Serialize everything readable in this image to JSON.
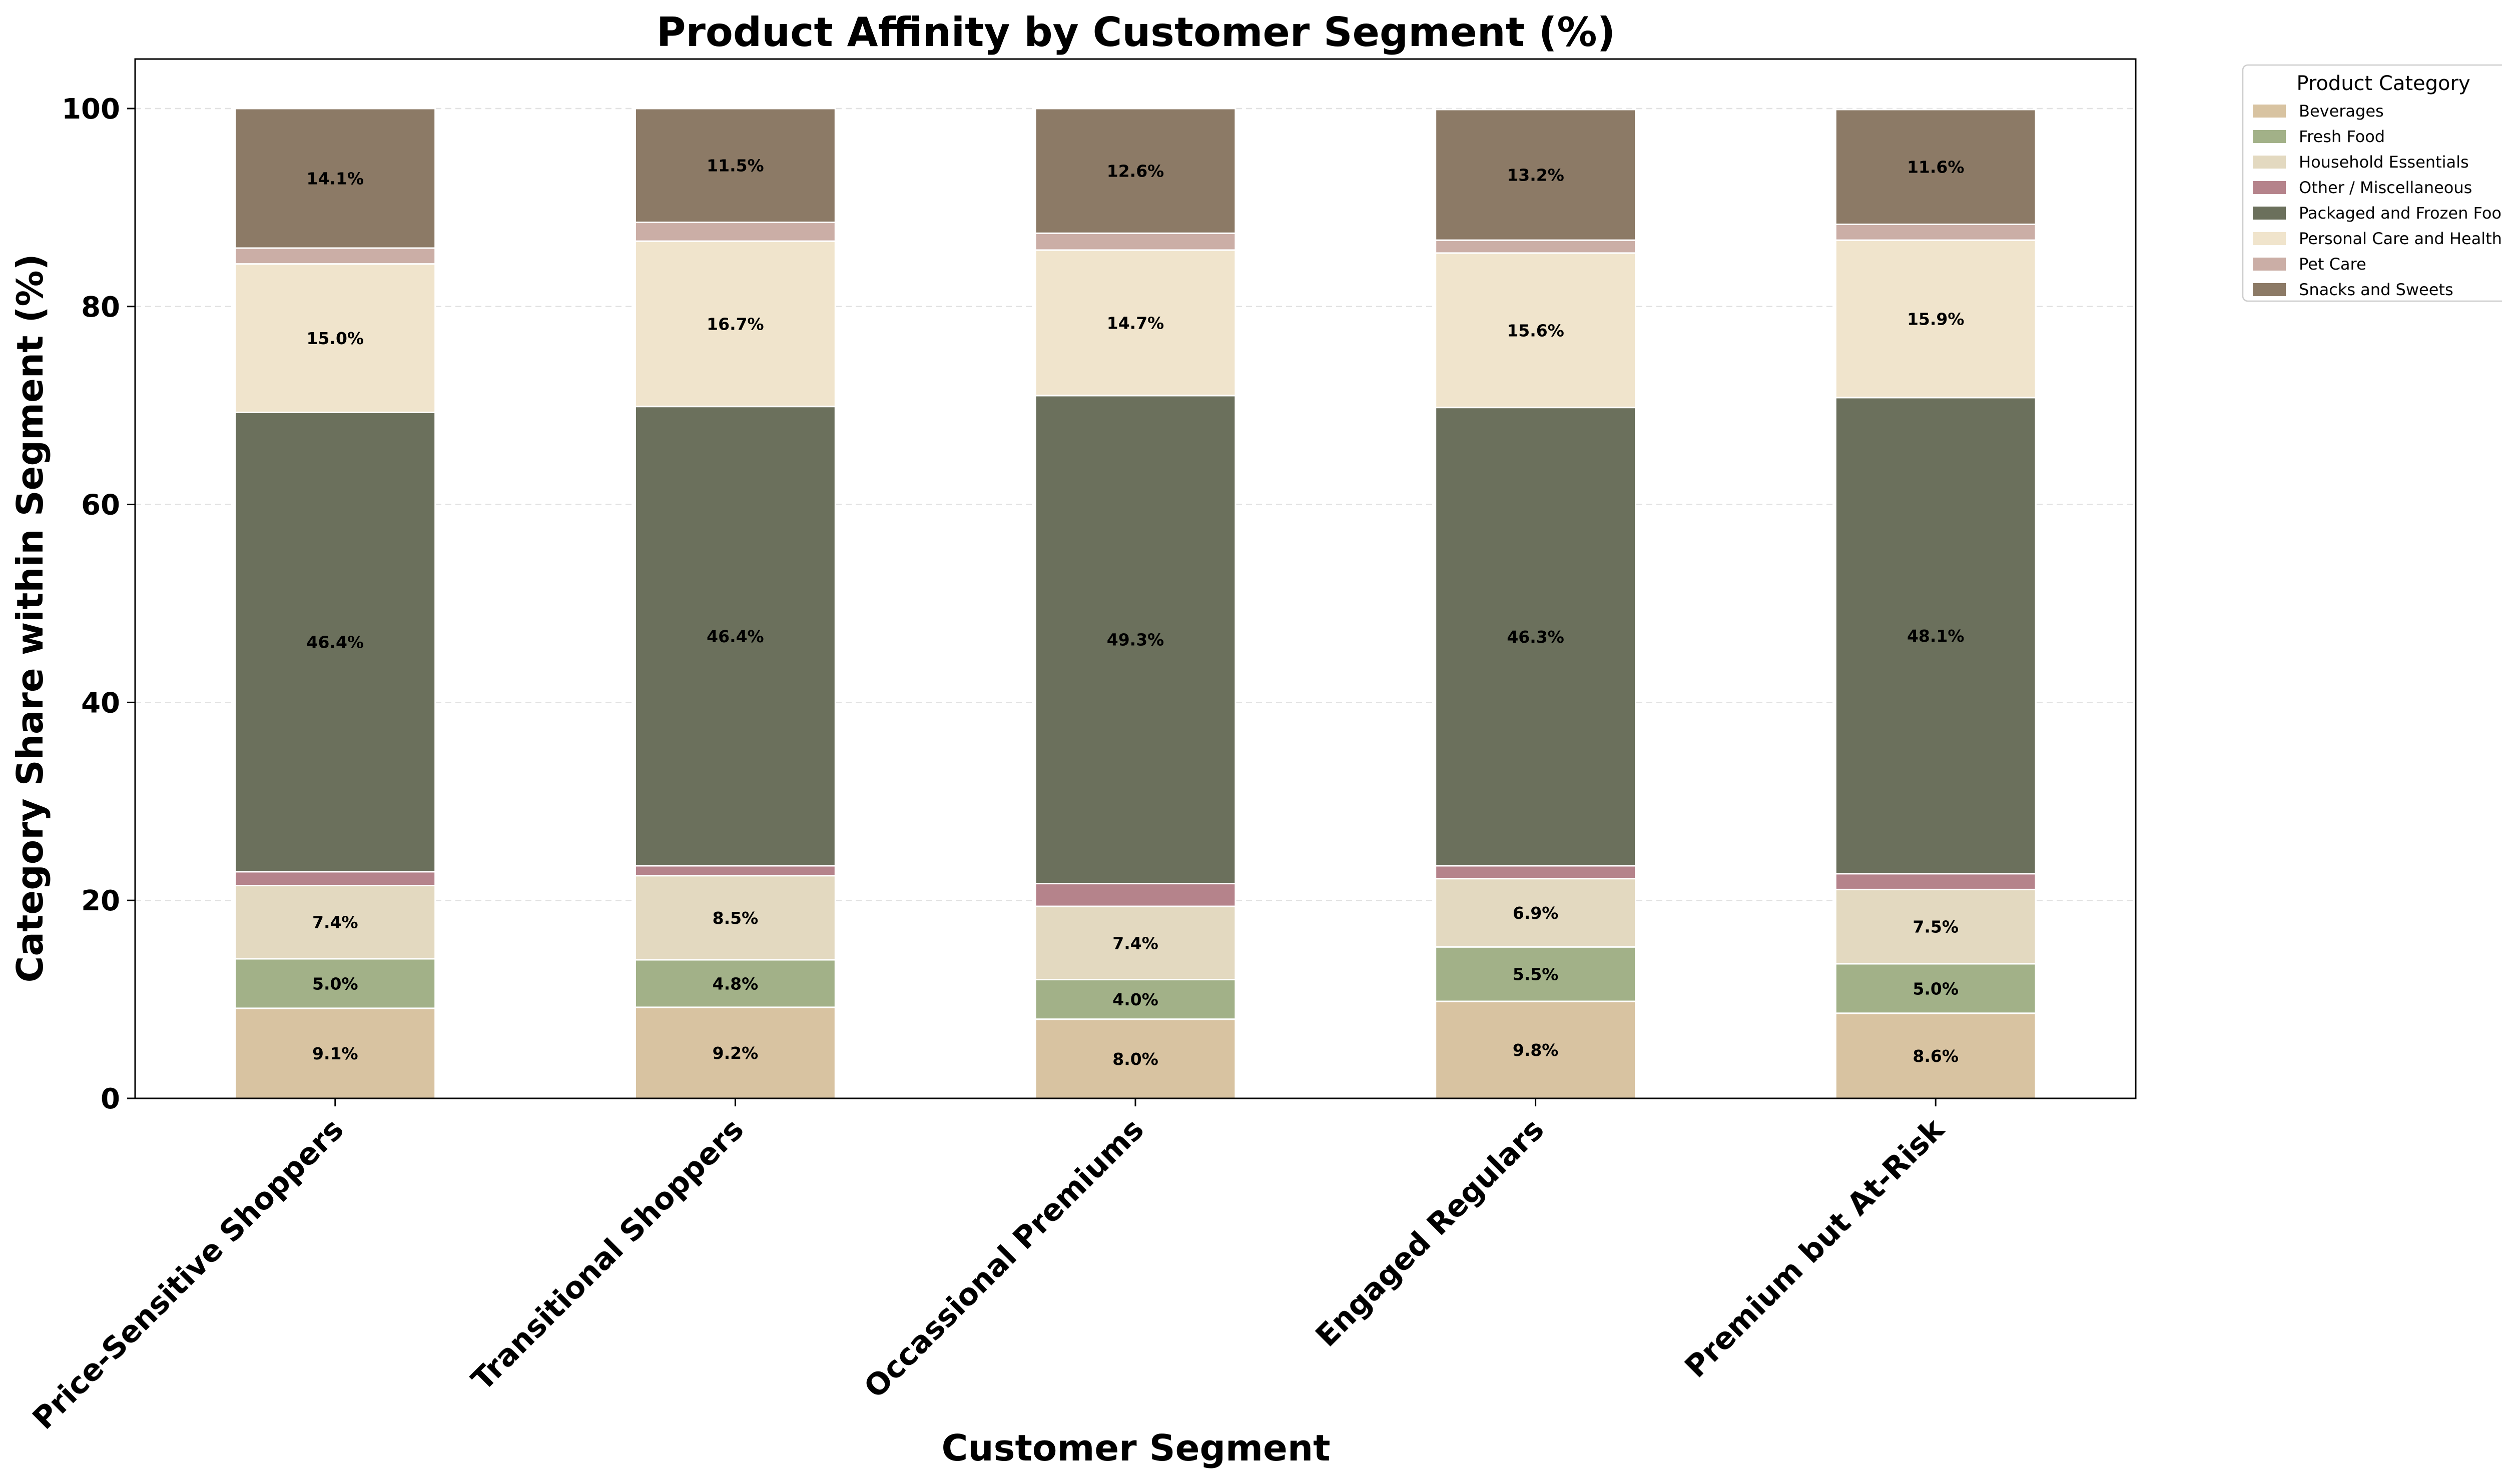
{
  "chart_data": {
    "type": "bar",
    "stacked": true,
    "title": "Product Affinity by Customer Segment (%)",
    "xlabel": "Customer Segment",
    "ylabel": "Category Share within Segment (%)",
    "ylim": [
      0,
      105
    ],
    "yticks": [
      0,
      20,
      40,
      60,
      80,
      100
    ],
    "grid": "y-dashed",
    "legend": {
      "title": "Product Category",
      "placement": "outside-top-right"
    },
    "categories": [
      "Price-Sensitive Shoppers",
      "Transitional Shoppers",
      "Occassional Premiums",
      "Engaged Regulars",
      "Premium but At-Risk"
    ],
    "series": [
      {
        "name": "Beverages",
        "color": "#d8c3a1",
        "values": [
          9.1,
          9.2,
          8.0,
          9.8,
          8.6
        ]
      },
      {
        "name": "Fresh Food",
        "color": "#a2b188",
        "values": [
          5.0,
          4.8,
          4.0,
          5.5,
          5.0
        ]
      },
      {
        "name": "Household Essentials",
        "color": "#e3d9c0",
        "values": [
          7.4,
          8.5,
          7.4,
          6.9,
          7.5
        ]
      },
      {
        "name": "Other / Miscellaneous",
        "color": "#b5838b",
        "values": [
          1.4,
          1.0,
          2.3,
          1.3,
          1.6
        ]
      },
      {
        "name": "Packaged and Frozen Food",
        "color": "#6b705c",
        "values": [
          46.4,
          46.4,
          49.3,
          46.3,
          48.1
        ]
      },
      {
        "name": "Personal Care and Health",
        "color": "#f0e4cc",
        "values": [
          15.0,
          16.7,
          14.7,
          15.6,
          15.9
        ]
      },
      {
        "name": "Pet Care",
        "color": "#cbaea6",
        "values": [
          1.6,
          1.9,
          1.7,
          1.3,
          1.6
        ]
      },
      {
        "name": "Snacks and Sweets",
        "color": "#8c7a66",
        "values": [
          14.1,
          11.5,
          12.6,
          13.2,
          11.6
        ]
      }
    ],
    "label_threshold": 3
  }
}
